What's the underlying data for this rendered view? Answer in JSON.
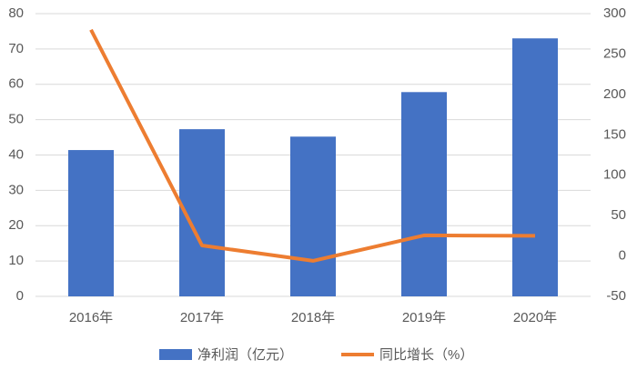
{
  "chart_data": {
    "type": "bar-line",
    "categories": [
      "2016年",
      "2017年",
      "2018年",
      "2019年",
      "2020年"
    ],
    "series": [
      {
        "name": "净利润（亿元）",
        "type": "bar",
        "color": "#4472c4",
        "values": [
          41.4,
          47.3,
          45.2,
          57.8,
          73.0
        ]
      },
      {
        "name": "同比增长（%）",
        "type": "line",
        "axis": "y2",
        "color": "#ed7d31",
        "values": [
          280,
          13,
          -6,
          25.5,
          25
        ]
      }
    ],
    "ylim": [
      0,
      80
    ],
    "yticks": [
      0,
      10,
      20,
      30,
      40,
      50,
      60,
      70,
      80
    ],
    "y2lim": [
      -50,
      300
    ],
    "y2ticks": [
      -50,
      0,
      50,
      100,
      150,
      200,
      250,
      300
    ],
    "grid": true,
    "legend": "bottom"
  }
}
